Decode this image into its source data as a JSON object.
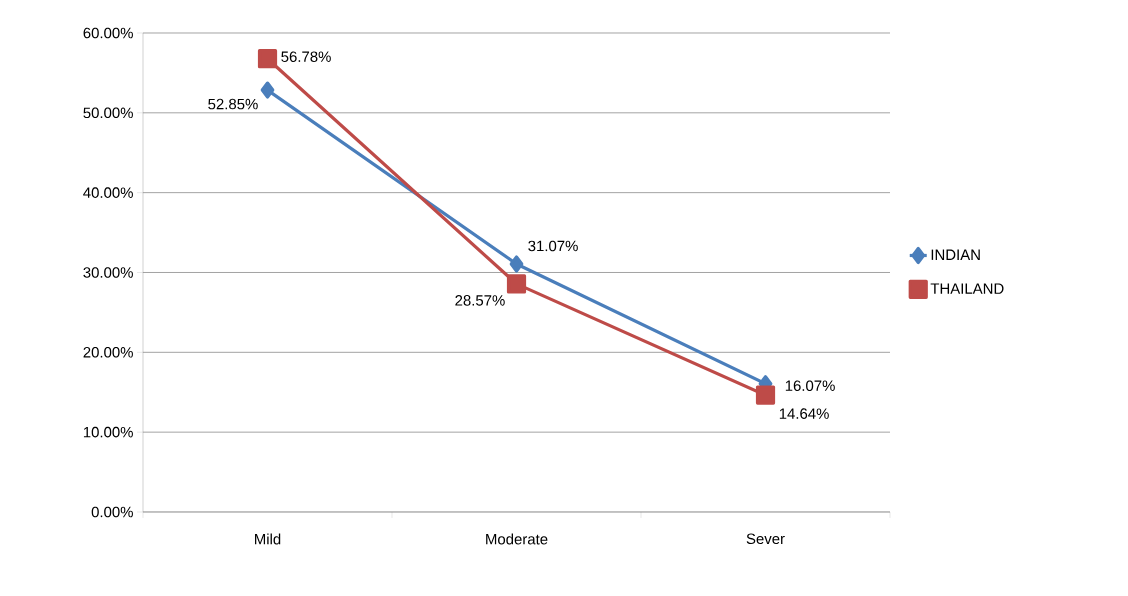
{
  "chart_data": {
    "type": "line",
    "categories": [
      "Mild",
      "Moderate",
      "Sever"
    ],
    "series": [
      {
        "name": "INDIAN",
        "color": "#4a7ebb",
        "marker": "diamond",
        "values": [
          52.85,
          31.07,
          16.07
        ],
        "value_labels": [
          "52.85%",
          "31.07%",
          "16.07%"
        ]
      },
      {
        "name": "THAILAND",
        "color": "#be4b48",
        "marker": "square",
        "values": [
          56.78,
          28.57,
          14.64
        ],
        "value_labels": [
          "56.78%",
          "28.57%",
          "14.64%"
        ]
      }
    ],
    "ylim": [
      0,
      60
    ],
    "yticks": [
      {
        "value": 0,
        "label": "0.00%"
      },
      {
        "value": 10,
        "label": "10.00%"
      },
      {
        "value": 20,
        "label": "20.00%"
      },
      {
        "value": 30,
        "label": "30.00%"
      },
      {
        "value": 40,
        "label": "40.00%"
      },
      {
        "value": 50,
        "label": "50.00%"
      },
      {
        "value": 60,
        "label": "60.00%"
      }
    ],
    "grid": "y",
    "legend": "right",
    "line_style": "solid"
  }
}
